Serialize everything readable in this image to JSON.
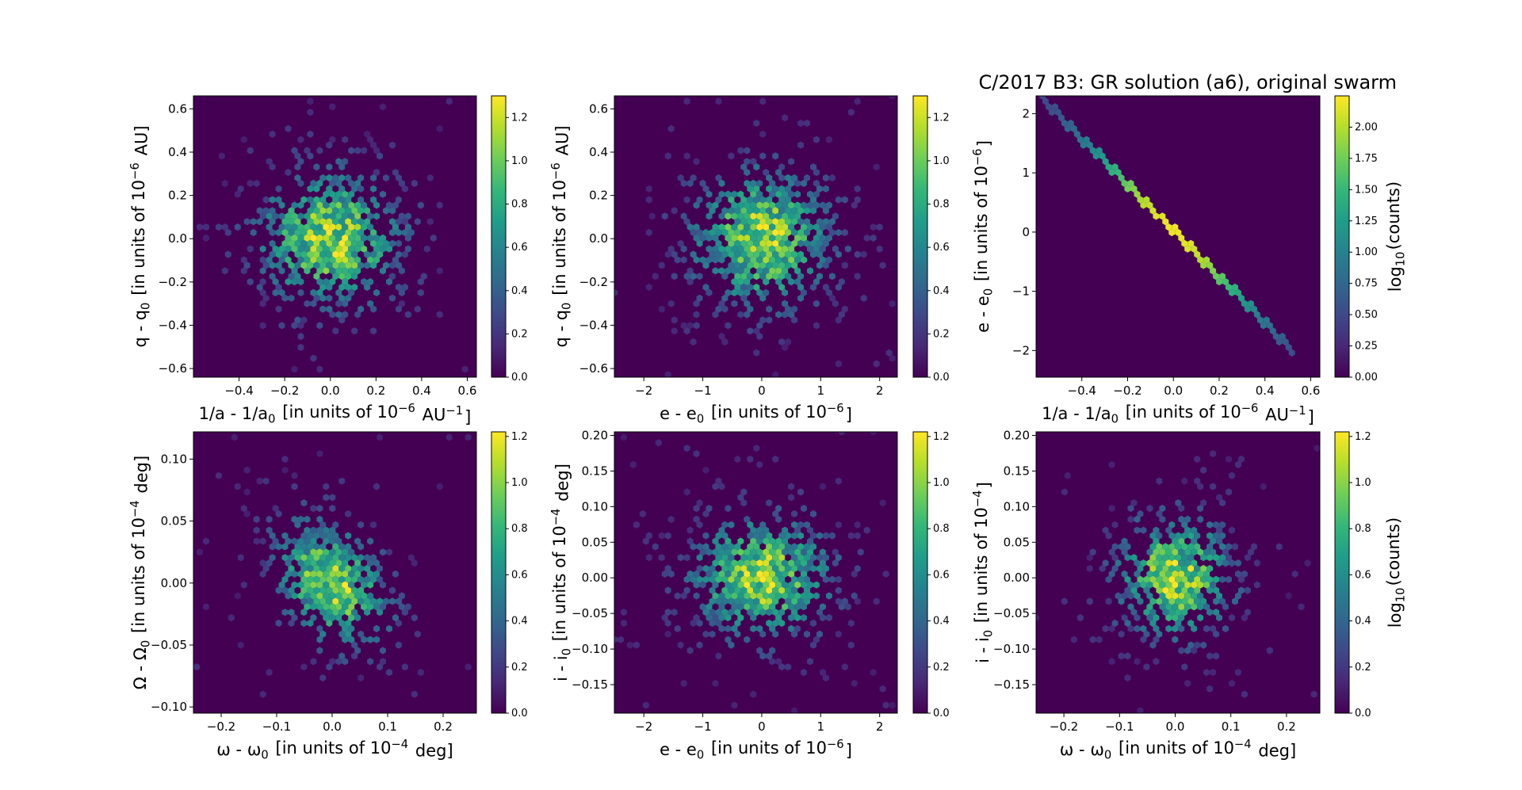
{
  "title": "C/2017 B3: GR solution (a6), original swarm",
  "colorbar_label": "log$_{10}$(counts)",
  "colors": {
    "background": "#440154",
    "colormap": "viridis",
    "viridis_stops": [
      "#440154",
      "#482878",
      "#3e4989",
      "#31688e",
      "#26828e",
      "#1f9e89",
      "#35b779",
      "#6ece58",
      "#b5de2b",
      "#fde725"
    ]
  },
  "chart_data": [
    {
      "type": "heatmap",
      "style": "hexbin",
      "xlabel": "1/a - 1/a$_0$ [in units of 10$^{-6}$ AU$^{-1}$]",
      "ylabel": "q - q$_0$ [in units of 10$^{-6}$ AU]",
      "xlim": [
        -0.6,
        0.64
      ],
      "ylim": [
        -0.64,
        0.66
      ],
      "xticks": [
        "−0.4",
        "−0.2",
        "0.0",
        "0.2",
        "0.4",
        "0.6"
      ],
      "xtick_values": [
        -0.4,
        -0.2,
        0.0,
        0.2,
        0.4,
        0.6
      ],
      "yticks": [
        "−0.6",
        "−0.4",
        "−0.2",
        "0.0",
        "0.2",
        "0.4",
        "0.6"
      ],
      "ytick_values": [
        -0.6,
        -0.4,
        -0.2,
        0.0,
        0.2,
        0.4,
        0.6
      ],
      "cmax": 1.3,
      "cbticks": [
        "0.0",
        "0.2",
        "0.4",
        "0.6",
        "0.8",
        "1.0",
        "1.2"
      ],
      "distribution": {
        "shape": "gaussian",
        "center": [
          0,
          0
        ],
        "sigma": [
          0.2,
          0.2
        ],
        "correlation": 0
      }
    },
    {
      "type": "heatmap",
      "style": "hexbin",
      "xlabel": "e - e$_0$ [in units of 10$^{-6}$]",
      "ylabel": "q - q$_0$ [in units of 10$^{-6}$ AU]",
      "xlim": [
        -2.5,
        2.3
      ],
      "ylim": [
        -0.64,
        0.66
      ],
      "xticks": [
        "−2",
        "−1",
        "0",
        "1",
        "2"
      ],
      "xtick_values": [
        -2,
        -1,
        0,
        1,
        2
      ],
      "yticks": [
        "−0.6",
        "−0.4",
        "−0.2",
        "0.0",
        "0.2",
        "0.4",
        "0.6"
      ],
      "ytick_values": [
        -0.6,
        -0.4,
        -0.2,
        0.0,
        0.2,
        0.4,
        0.6
      ],
      "cmax": 1.3,
      "cbticks": [
        "0.0",
        "0.2",
        "0.4",
        "0.6",
        "0.8",
        "1.0",
        "1.2"
      ],
      "distribution": {
        "shape": "gaussian",
        "center": [
          0,
          0
        ],
        "sigma": [
          0.75,
          0.2
        ],
        "correlation": 0
      }
    },
    {
      "type": "heatmap",
      "style": "hexbin",
      "xlabel": "1/a - 1/a$_0$ [in units of 10$^{-6}$ AU$^{-1}$]",
      "ylabel": "e - e$_0$ [in units of 10$^{-6}$]",
      "xlim": [
        -0.6,
        0.64
      ],
      "ylim": [
        -2.45,
        2.3
      ],
      "xticks": [
        "−0.4",
        "−0.2",
        "0.0",
        "0.2",
        "0.4",
        "0.6"
      ],
      "xtick_values": [
        -0.4,
        -0.2,
        0.0,
        0.2,
        0.4,
        0.6
      ],
      "yticks": [
        "−2",
        "−1",
        "0",
        "1",
        "2"
      ],
      "ytick_values": [
        -2,
        -1,
        0,
        1,
        2
      ],
      "cmax": 2.25,
      "cbticks": [
        "0.00",
        "0.25",
        "0.50",
        "0.75",
        "1.00",
        "1.25",
        "1.50",
        "1.75",
        "2.00"
      ],
      "colorbar_label_shown": true,
      "distribution": {
        "shape": "line",
        "from": [
          -0.57,
          2.25
        ],
        "to": [
          0.52,
          -2.0
        ],
        "center_intensity": 2.2
      }
    },
    {
      "type": "heatmap",
      "style": "hexbin",
      "xlabel": "$\\omega$ - $\\omega_0$ [in units of 10$^{-4}$ deg]",
      "ylabel": "$\\Omega$ - $\\Omega_0$ [in units of 10$^{-4}$ deg]",
      "xlim": [
        -0.25,
        0.26
      ],
      "ylim": [
        -0.105,
        0.122
      ],
      "xticks": [
        "−0.2",
        "−0.1",
        "0.0",
        "0.1",
        "0.2"
      ],
      "xtick_values": [
        -0.2,
        -0.1,
        0.0,
        0.1,
        0.2
      ],
      "yticks": [
        "−0.10",
        "−0.05",
        "0.00",
        "0.05",
        "0.10"
      ],
      "ytick_values": [
        -0.1,
        -0.05,
        0.0,
        0.05,
        0.1
      ],
      "cmax": 1.22,
      "cbticks": [
        "0.0",
        "0.2",
        "0.4",
        "0.6",
        "0.8",
        "1.0",
        "1.2"
      ],
      "distribution": {
        "shape": "gaussian",
        "center": [
          0,
          0
        ],
        "sigma": [
          0.065,
          0.032
        ],
        "correlation": -0.3
      }
    },
    {
      "type": "heatmap",
      "style": "hexbin",
      "xlabel": "e - e$_0$ [in units of 10$^{-6}$]",
      "ylabel": "i - i$_0$ [in units of 10$^{-4}$ deg]",
      "xlim": [
        -2.5,
        2.3
      ],
      "ylim": [
        -0.19,
        0.205
      ],
      "xticks": [
        "−2",
        "−1",
        "0",
        "1",
        "2"
      ],
      "xtick_values": [
        -2,
        -1,
        0,
        1,
        2
      ],
      "yticks": [
        "−0.15",
        "−0.10",
        "−0.05",
        "0.00",
        "0.05",
        "0.10",
        "0.15",
        "0.20"
      ],
      "ytick_values": [
        -0.15,
        -0.1,
        -0.05,
        0.0,
        0.05,
        0.1,
        0.15,
        0.2
      ],
      "cmax": 1.22,
      "cbticks": [
        "0.0",
        "0.2",
        "0.4",
        "0.6",
        "0.8",
        "1.0",
        "1.2"
      ],
      "distribution": {
        "shape": "gaussian",
        "center": [
          0,
          0
        ],
        "sigma": [
          0.75,
          0.055
        ],
        "correlation": 0
      }
    },
    {
      "type": "heatmap",
      "style": "hexbin",
      "xlabel": "$\\omega$ - $\\omega_0$ [in units of 10$^{-4}$ deg]",
      "ylabel": "i - i$_0$ [in units of 10$^{-4}$]",
      "xlim": [
        -0.25,
        0.26
      ],
      "ylim": [
        -0.19,
        0.205
      ],
      "xticks": [
        "−0.2",
        "−0.1",
        "0.0",
        "0.1",
        "0.2"
      ],
      "xtick_values": [
        -0.2,
        -0.1,
        0.0,
        0.1,
        0.2
      ],
      "yticks": [
        "−0.15",
        "−0.10",
        "−0.05",
        "0.00",
        "0.05",
        "0.10",
        "0.15",
        "0.20"
      ],
      "ytick_values": [
        -0.15,
        -0.1,
        -0.05,
        0.0,
        0.05,
        0.1,
        0.15,
        0.2
      ],
      "cmax": 1.22,
      "cbticks": [
        "0.0",
        "0.2",
        "0.4",
        "0.6",
        "0.8",
        "1.0",
        "1.2"
      ],
      "colorbar_label_shown": true,
      "distribution": {
        "shape": "gaussian",
        "center": [
          0,
          0
        ],
        "sigma": [
          0.065,
          0.055
        ],
        "correlation": 0
      }
    }
  ]
}
